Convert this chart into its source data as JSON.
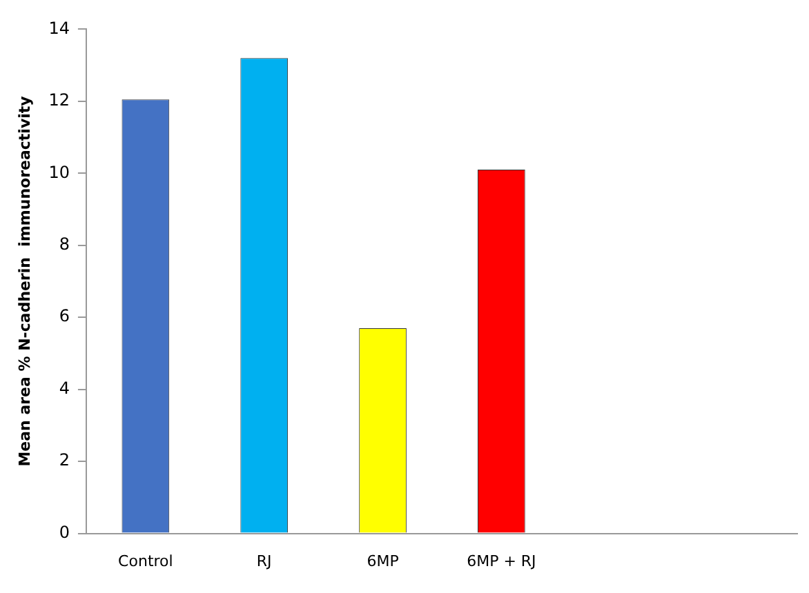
{
  "chart_data": {
    "type": "bar",
    "ylabel": "Mean area % N-cadherin  immunoreactivity",
    "categories": [
      "Control",
      "RJ",
      "6MP",
      "6MP + RJ",
      null,
      null
    ],
    "values": [
      12.05,
      13.2,
      5.7,
      10.1,
      null,
      null
    ],
    "colors": [
      "#4472c4",
      "#00b0f0",
      "#ffff00",
      "#ff0000",
      "#ffffff",
      "#ffffff"
    ],
    "ylim": [
      0,
      14
    ],
    "yticks": [
      0,
      2,
      4,
      6,
      8,
      10,
      12,
      14
    ],
    "grid": false,
    "legend": false
  }
}
